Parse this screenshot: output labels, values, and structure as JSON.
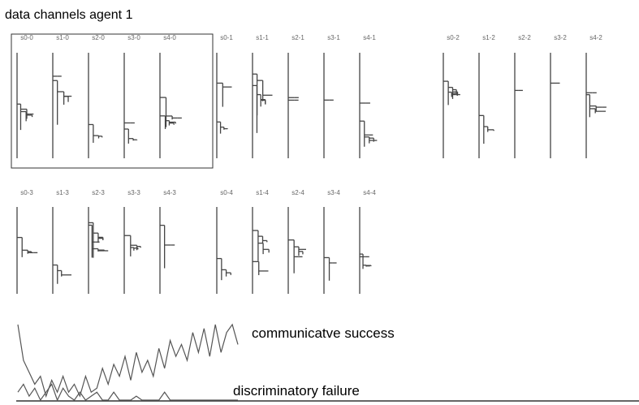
{
  "title": "data channels agent 1",
  "trees": {
    "labels": [
      "s0-0",
      "s1-0",
      "s2-0",
      "s3-0",
      "s4-0",
      "s0-1",
      "s1-1",
      "s2-1",
      "s3-1",
      "s4-1",
      "s0-2",
      "s1-2",
      "s2-2",
      "s3-2",
      "s4-2",
      "s0-3",
      "s1-3",
      "s2-3",
      "s3-3",
      "s4-3",
      "s0-4",
      "s1-4",
      "s2-4",
      "s3-4",
      "s4-4"
    ]
  },
  "chart": {
    "series": [
      {
        "name": "communicatve success",
        "color": "#555",
        "values": [
          0.95,
          0.5,
          0.35,
          0.2,
          0.3,
          0.05,
          0.25,
          0.1,
          0.3,
          0.1,
          0.2,
          0.05,
          0.3,
          0.1,
          0.15,
          0.4,
          0.2,
          0.45,
          0.3,
          0.55,
          0.25,
          0.6,
          0.35,
          0.5,
          0.3,
          0.65,
          0.4,
          0.75,
          0.55,
          0.7,
          0.5,
          0.85,
          0.6,
          0.9,
          0.55,
          0.95,
          0.6,
          0.85,
          0.95,
          0.7
        ]
      },
      {
        "name": "discriminatory failure",
        "color": "#555",
        "values": [
          0.1,
          0.2,
          0.05,
          0.15,
          0,
          0.1,
          0.2,
          0,
          0.15,
          0.05,
          0,
          0.1,
          0,
          0.05,
          0.1,
          0,
          0,
          0.1,
          0,
          0,
          0,
          0.05,
          0,
          0,
          0,
          0,
          0.1,
          0,
          0,
          0,
          0,
          0,
          0,
          0,
          0,
          0,
          0,
          0,
          0,
          0
        ]
      }
    ]
  }
}
